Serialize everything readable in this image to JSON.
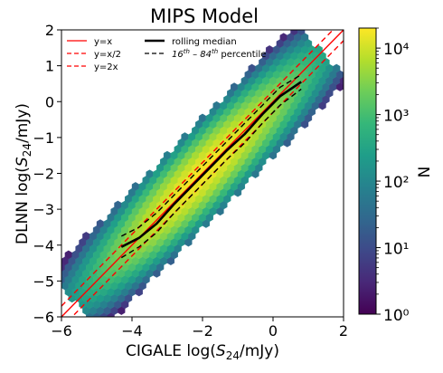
{
  "chart_data": {
    "type": "hexbin",
    "title": "MIPS Model",
    "xlabel": "CIGALE log($S_{24}$/mJy)",
    "ylabel": "DLNN log($S_{24}$/mJy)",
    "xlim": [
      -6,
      2
    ],
    "ylim": [
      -6,
      2
    ],
    "xticks": [
      -6,
      -4,
      -2,
      0,
      2
    ],
    "yticks": [
      -6,
      -5,
      -4,
      -3,
      -2,
      -1,
      0,
      1,
      2
    ],
    "x_tick_labels": [
      "−6",
      "−4",
      "−2",
      "0",
      "2"
    ],
    "y_tick_labels": [
      "−6",
      "−5",
      "−4",
      "−3",
      "−2",
      "−1",
      "0",
      "1",
      "2"
    ],
    "grid": false,
    "legend_position": "top-left",
    "legend": [
      {
        "label": "y=x",
        "style": "solid",
        "color": "#ff0000"
      },
      {
        "label": "y=x/2",
        "style": "dashed",
        "color": "#ff0000"
      },
      {
        "label": "y=2x",
        "style": "dashed",
        "color": "#ff0000"
      },
      {
        "label": "rolling median",
        "style": "solid-thick",
        "color": "#000000"
      },
      {
        "label": "16th – 84th percentile",
        "style": "dashed",
        "color": "#000000"
      }
    ],
    "reference_lines": [
      {
        "name": "y=x",
        "dex_offset": 0,
        "style": "solid",
        "color": "#ff0000"
      },
      {
        "name": "y=x/2",
        "dex_offset": -0.301,
        "style": "dashed",
        "color": "#ff0000"
      },
      {
        "name": "y=2x",
        "dex_offset": 0.301,
        "style": "dashed",
        "color": "#ff0000"
      }
    ],
    "rolling_median": {
      "x": [
        -4.3,
        -3.8,
        -3.3,
        -2.8,
        -2.3,
        -1.8,
        -1.3,
        -0.8,
        -0.3,
        0.2,
        0.8
      ],
      "y": [
        -4.05,
        -3.8,
        -3.4,
        -2.85,
        -2.35,
        -1.85,
        -1.35,
        -0.9,
        -0.35,
        0.15,
        0.55
      ]
    },
    "percentile_16": {
      "x": [
        -4.3,
        -3.8,
        -3.3,
        -2.8,
        -2.3,
        -1.8,
        -1.3,
        -0.8,
        -0.3,
        0.2,
        0.8
      ],
      "y": [
        -4.35,
        -4.05,
        -3.65,
        -3.1,
        -2.6,
        -2.1,
        -1.6,
        -1.15,
        -0.6,
        -0.1,
        0.35
      ]
    },
    "percentile_84": {
      "x": [
        -4.3,
        -3.8,
        -3.3,
        -2.8,
        -2.3,
        -1.8,
        -1.3,
        -0.8,
        -0.3,
        0.2,
        0.8
      ],
      "y": [
        -3.75,
        -3.5,
        -3.1,
        -2.6,
        -2.1,
        -1.6,
        -1.1,
        -0.6,
        -0.1,
        0.4,
        0.75
      ]
    },
    "density_model": {
      "center_u": -2.0,
      "sigma_along": 1.2,
      "sigma_across": 0.32,
      "peak_count": 18000,
      "min_count": 1,
      "u_range": [
        -5.6,
        1.4
      ],
      "v_range": [
        -1.1,
        1.1
      ]
    },
    "colorbar": {
      "label": "N",
      "scale": "log",
      "range": [
        1,
        20000
      ],
      "tick_values": [
        1,
        10,
        100,
        1000,
        10000
      ],
      "tick_labels": [
        "10⁰",
        "10¹",
        "10²",
        "10³",
        "10⁴"
      ],
      "colormap": "viridis"
    }
  }
}
